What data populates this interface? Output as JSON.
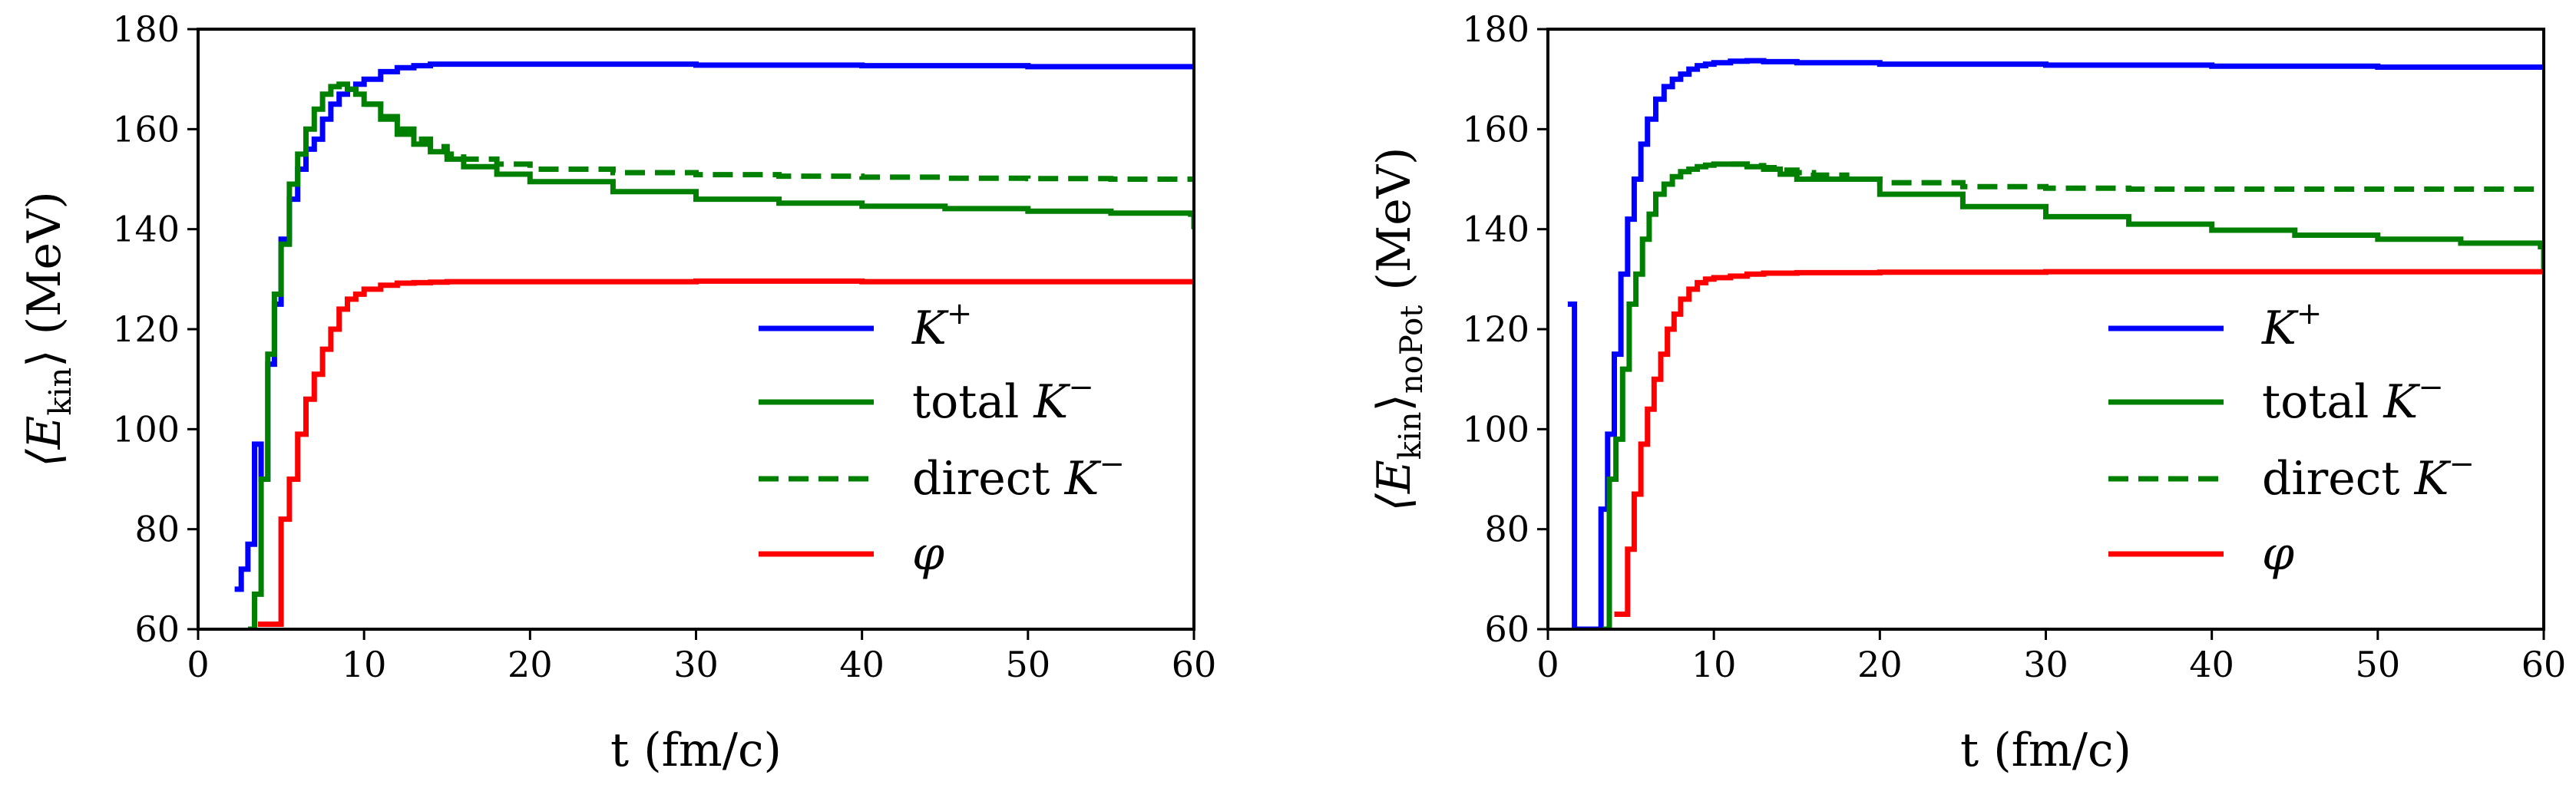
{
  "chart_data": [
    {
      "type": "line",
      "panel": "left",
      "xlabel": "t (fm/c)",
      "ylabel": "⟨E_kin⟩ (MeV)",
      "ylabel_parts": {
        "pre": "⟨E",
        "sub": "kin",
        "post": "⟩ (MeV)"
      },
      "xlim": [
        0,
        60
      ],
      "ylim": [
        60,
        180
      ],
      "xticks": [
        0,
        10,
        20,
        30,
        40,
        50,
        60
      ],
      "yticks": [
        60,
        80,
        100,
        120,
        140,
        160,
        180
      ],
      "grid": false,
      "legend_position": "lower-right",
      "series": [
        {
          "name": "K+",
          "label_base": "K",
          "label_sup": "+",
          "color": "#0000ff",
          "style": "solid",
          "x": [
            2.2,
            2.6,
            3.0,
            3.4,
            3.8,
            4.2,
            4.6,
            5.0,
            5.5,
            6.0,
            6.5,
            7.0,
            7.5,
            8.0,
            8.5,
            9.0,
            9.5,
            10,
            11,
            12,
            13,
            14,
            15,
            20,
            30,
            40,
            50,
            60
          ],
          "y": [
            68,
            72,
            77,
            97,
            90,
            113,
            125,
            138,
            146,
            152,
            156,
            158,
            162,
            165,
            167,
            168,
            169,
            170,
            171.5,
            172.3,
            172.7,
            173,
            173,
            173,
            172.8,
            172.7,
            172.5,
            172.5
          ]
        },
        {
          "name": "total K−",
          "label_base": "total K",
          "label_sup": "−",
          "color": "#008000",
          "style": "solid",
          "x": [
            3.0,
            3.4,
            3.8,
            4.2,
            4.6,
            5.0,
            5.5,
            6.0,
            6.5,
            7.0,
            7.5,
            8.0,
            8.5,
            9.0,
            9.5,
            10,
            11,
            12,
            13,
            14,
            15,
            16,
            18,
            20,
            25,
            30,
            35,
            40,
            45,
            50,
            55,
            59.8,
            60
          ],
          "y": [
            60,
            67,
            90,
            115,
            127,
            137,
            149,
            155,
            160,
            164,
            167,
            168.5,
            169,
            168,
            167,
            165,
            162,
            159,
            157,
            155.5,
            154,
            152.5,
            151,
            149.5,
            147.5,
            146,
            145.2,
            144.6,
            144.1,
            143.6,
            143.2,
            143,
            140
          ]
        },
        {
          "name": "direct K−",
          "label_base": "direct K",
          "label_sup": "−",
          "color": "#008000",
          "style": "dashed",
          "x": [
            10,
            11,
            12,
            13,
            14,
            15,
            16,
            18,
            20,
            25,
            30,
            35,
            40,
            45,
            50,
            55,
            60
          ],
          "y": [
            165,
            162.5,
            160,
            158,
            156.5,
            155,
            154,
            153,
            152,
            151.3,
            150.9,
            150.6,
            150.4,
            150.2,
            150.1,
            150,
            150
          ]
        },
        {
          "name": "φ",
          "label_base": "φ",
          "label_sup": "",
          "color": "#ff0000",
          "style": "solid",
          "x": [
            3.6,
            4.0,
            4.6,
            5.0,
            5.5,
            6.0,
            6.5,
            7.0,
            7.5,
            8.0,
            8.5,
            9.0,
            9.5,
            10,
            11,
            12,
            13,
            14,
            15,
            20,
            30,
            40,
            50,
            60
          ],
          "y": [
            61,
            61,
            61,
            82,
            90,
            99,
            106,
            111,
            116,
            120,
            124,
            126,
            127,
            128,
            128.8,
            129.2,
            129.3,
            129.4,
            129.5,
            129.5,
            129.6,
            129.5,
            129.5,
            129.5
          ]
        }
      ]
    },
    {
      "type": "line",
      "panel": "right",
      "xlabel": "t (fm/c)",
      "ylabel": "⟨E_kin⟩_noPot (MeV)",
      "ylabel_parts": {
        "pre": "⟨E",
        "sub": "kin",
        "mid": "⟩",
        "sub2": "noPot",
        "post": " (MeV)"
      },
      "xlim": [
        0,
        60
      ],
      "ylim": [
        60,
        180
      ],
      "xticks": [
        0,
        10,
        20,
        30,
        40,
        50,
        60
      ],
      "yticks": [
        60,
        80,
        100,
        120,
        140,
        160,
        180
      ],
      "grid": false,
      "legend_position": "lower-right",
      "series": [
        {
          "name": "K+",
          "label_base": "K",
          "label_sup": "+",
          "color": "#0000ff",
          "style": "solid",
          "x": [
            1.2,
            1.6,
            1.6,
            2.9,
            3.2,
            3.6,
            4.0,
            4.4,
            4.8,
            5.2,
            5.6,
            6.0,
            6.5,
            7.0,
            7.5,
            8.0,
            8.5,
            9.0,
            9.5,
            10,
            11,
            12,
            13,
            15,
            20,
            30,
            40,
            50,
            60
          ],
          "y": [
            125,
            125,
            60,
            60,
            84,
            99,
            115,
            131,
            142,
            150,
            157,
            162,
            166,
            168.5,
            170,
            171,
            172,
            172.7,
            173,
            173.3,
            173.6,
            173.7,
            173.5,
            173.3,
            173,
            172.8,
            172.6,
            172.4,
            172.3
          ]
        },
        {
          "name": "total K−",
          "label_base": "total K",
          "label_sup": "−",
          "color": "#008000",
          "style": "solid",
          "x": [
            3.3,
            3.7,
            4.1,
            4.5,
            4.9,
            5.3,
            5.7,
            6.1,
            6.5,
            7.0,
            7.5,
            8.0,
            8.5,
            9.0,
            9.5,
            10,
            10.5,
            11,
            12,
            13,
            14,
            15,
            20,
            25,
            30,
            35,
            40,
            45,
            50,
            55,
            59.8,
            60
          ],
          "y": [
            60,
            90,
            98,
            112,
            125,
            131,
            138,
            143,
            147,
            149,
            150.5,
            151.5,
            152,
            152.5,
            152.8,
            153,
            153,
            153,
            152.5,
            152,
            151,
            150,
            147,
            144.5,
            142.5,
            141,
            139.8,
            138.8,
            138,
            137.2,
            136.5,
            132
          ]
        },
        {
          "name": "direct K−",
          "label_base": "direct K",
          "label_sup": "−",
          "color": "#008000",
          "style": "dashed",
          "x": [
            11,
            12,
            13,
            14,
            15,
            16,
            18,
            20,
            25,
            30,
            35,
            40,
            45,
            50,
            55,
            60
          ],
          "y": [
            153,
            152.7,
            152.3,
            151.8,
            151.3,
            150.8,
            150,
            149.3,
            148.5,
            148.2,
            148,
            148,
            148,
            148,
            148,
            148
          ]
        },
        {
          "name": "φ",
          "label_base": "φ",
          "label_sup": "",
          "color": "#ff0000",
          "style": "solid",
          "x": [
            4.0,
            4.4,
            4.8,
            5.2,
            5.6,
            6.0,
            6.4,
            6.8,
            7.2,
            7.6,
            8.0,
            8.5,
            9.0,
            9.5,
            10,
            11,
            12,
            13,
            15,
            20,
            30,
            40,
            50,
            60
          ],
          "y": [
            63,
            63,
            76,
            87,
            97,
            104,
            110,
            115,
            120,
            123,
            126,
            128,
            129.3,
            130,
            130.3,
            130.6,
            131,
            131.2,
            131.3,
            131.4,
            131.5,
            131.5,
            131.5,
            131.5
          ]
        }
      ]
    }
  ]
}
